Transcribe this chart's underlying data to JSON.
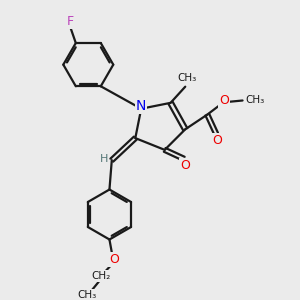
{
  "bg_color": "#ebebeb",
  "bond_color": "#1a1a1a",
  "N_color": "#0000ee",
  "O_color": "#ee0000",
  "F_color": "#bb44bb",
  "H_color": "#557777",
  "line_width": 1.6,
  "xlim": [
    0,
    10
  ],
  "ylim": [
    0,
    10
  ]
}
